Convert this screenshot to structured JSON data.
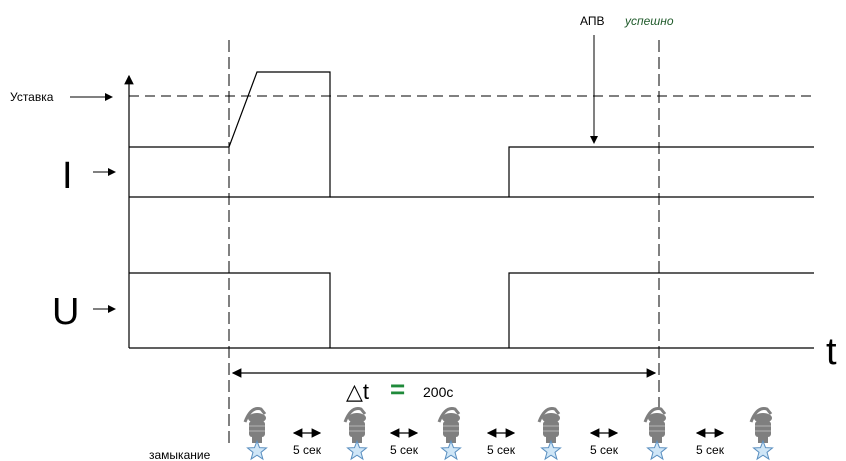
{
  "labels": {
    "setpoint": "Уставка",
    "current": "I",
    "voltage": "U",
    "time_axis": "t",
    "apv": "АПВ",
    "apv_status": "успешно",
    "delta_symbol": "△t",
    "equals": "=",
    "delta_value": "200с",
    "fault": "замыкание"
  },
  "intervals": [
    "5 сек",
    "5 сек",
    "5 сек",
    "5 сек",
    "5 сек"
  ],
  "colors": {
    "line": "#000000",
    "star_fill": "#cfe6f7",
    "star_stroke": "#5a8fc0",
    "device_gray": "#7f7f7f",
    "equals_green": "#1f8a3a",
    "status_green": "#1f5a2a"
  },
  "icons": [
    "arrester-icon",
    "star-icon",
    "double-arrow-icon"
  ]
}
